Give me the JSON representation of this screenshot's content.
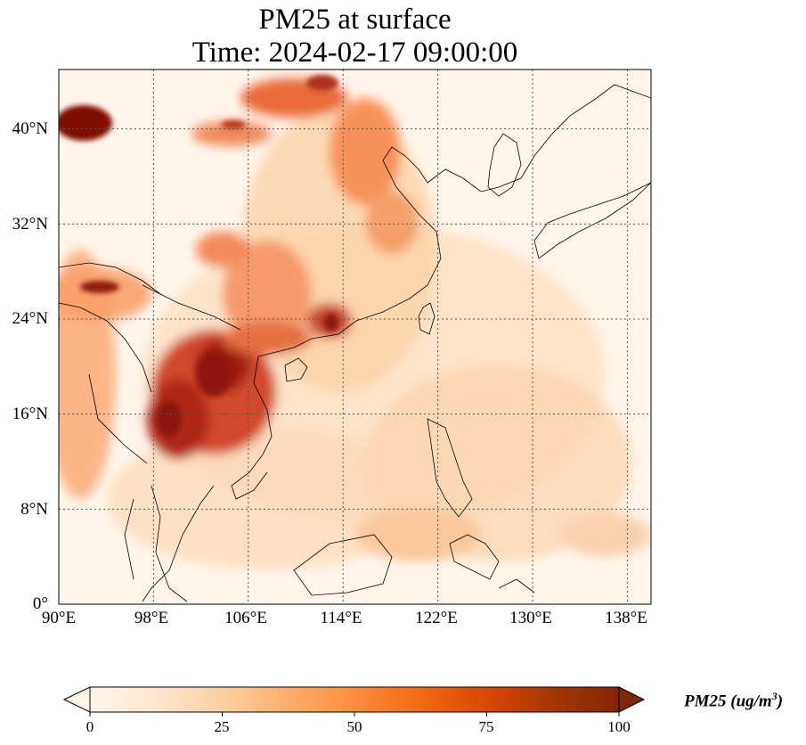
{
  "title": {
    "line1": "PM25 at surface",
    "line2": "Time: 2024-02-17 09:00:00"
  },
  "axes": {
    "lat_labels": [
      "0°",
      "8°N",
      "16°N",
      "24°N",
      "32°N",
      "40°N"
    ],
    "lon_labels": [
      "90°E",
      "98°E",
      "106°E",
      "114°E",
      "122°E",
      "130°E",
      "138°E"
    ],
    "lat_range": [
      0,
      45
    ],
    "lon_range": [
      90,
      140
    ]
  },
  "colorbar": {
    "label_main": "PM25 (ug/m",
    "label_sup": "3",
    "label_end": ")",
    "ticks": [
      "0",
      "25",
      "50",
      "75",
      "100"
    ],
    "range": [
      0,
      100
    ],
    "extend": "both",
    "colormap": [
      "#fff5eb",
      "#fee6ce",
      "#fdd0a2",
      "#fdae6b",
      "#fd8d3c",
      "#f16913",
      "#d94801",
      "#a63603",
      "#7f2704"
    ]
  },
  "colors": {
    "grid": "#555555",
    "coast": "#000000"
  }
}
